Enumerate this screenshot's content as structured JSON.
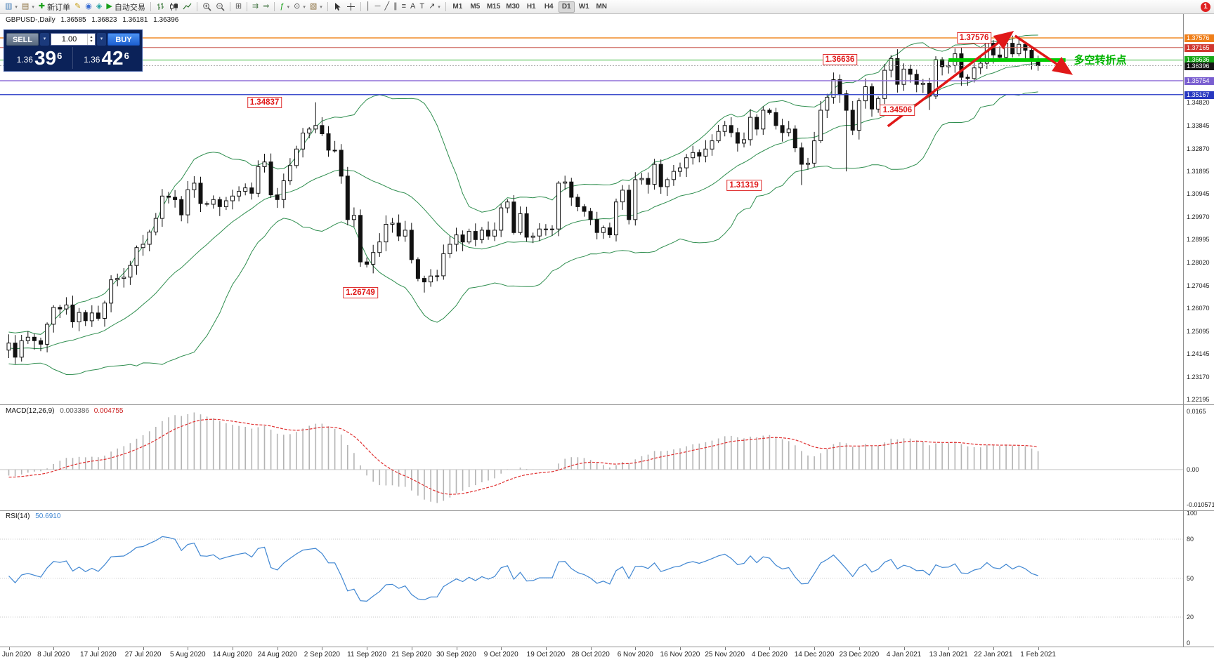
{
  "toolbar": {
    "groups": [
      {
        "items": [
          {
            "name": "new-chart-icon",
            "glyph": "▥",
            "color": "#3c78b4",
            "caret": true
          },
          {
            "name": "profiles-icon",
            "glyph": "▤",
            "color": "#8a6d3b",
            "caret": true
          },
          {
            "name": "new-order-button",
            "glyph": "✚",
            "color": "#18a018",
            "label": "新订单"
          },
          {
            "name": "metaeditor-icon",
            "glyph": "✎",
            "color": "#c8a018"
          },
          {
            "name": "experts-icon",
            "glyph": "◉",
            "color": "#3b6fd4"
          },
          {
            "name": "mql5-community-icon",
            "glyph": "◈",
            "color": "#20a0a0"
          },
          {
            "name": "autotrading-button",
            "glyph": "▶",
            "color": "#18a018",
            "label": "自动交易"
          }
        ]
      },
      {
        "items": [
          {
            "name": "bar-chart-icon",
            "svg": "bars"
          },
          {
            "name": "candlestick-chart-icon",
            "svg": "candles"
          },
          {
            "name": "line-chart-icon",
            "svg": "linec"
          }
        ]
      },
      {
        "items": [
          {
            "name": "zoom-in-icon",
            "svg": "zoomin"
          },
          {
            "name": "zoom-out-icon",
            "svg": "zoomout"
          }
        ]
      },
      {
        "items": [
          {
            "name": "tile-windows-icon",
            "glyph": "⊞",
            "color": "#555555"
          }
        ]
      },
      {
        "items": [
          {
            "name": "auto-scroll-icon",
            "glyph": "⇉",
            "color": "#4a7a4a"
          },
          {
            "name": "chart-shift-icon",
            "glyph": "⇒",
            "color": "#4a7a4a"
          }
        ]
      },
      {
        "items": [
          {
            "name": "indicators-icon",
            "glyph": "ƒ",
            "color": "#18a018",
            "caret": true
          },
          {
            "name": "periods-icon",
            "glyph": "⊙",
            "color": "#555555",
            "caret": true
          },
          {
            "name": "templates-icon",
            "glyph": "▧",
            "color": "#8a6d3b",
            "caret": true
          }
        ]
      },
      {
        "items": [
          {
            "name": "cursor-icon",
            "svg": "cursor"
          },
          {
            "name": "crosshair-icon",
            "svg": "cross"
          }
        ]
      },
      {
        "items": [
          {
            "name": "vertical-line-icon",
            "glyph": "│",
            "color": "#444444"
          },
          {
            "name": "horizontal-line-icon",
            "glyph": "─",
            "color": "#444444"
          },
          {
            "name": "trendline-icon",
            "glyph": "╱",
            "color": "#444444"
          },
          {
            "name": "equidistant-channel-icon",
            "glyph": "∥",
            "color": "#444444"
          },
          {
            "name": "fibonacci-icon",
            "glyph": "≡",
            "color": "#444444"
          },
          {
            "name": "text-icon",
            "glyph": "A",
            "color": "#444444"
          },
          {
            "name": "text-label-icon",
            "glyph": "T",
            "color": "#444444"
          },
          {
            "name": "arrows-icon",
            "glyph": "↗",
            "color": "#444444",
            "caret": true
          }
        ]
      }
    ],
    "timeframes": [
      "M1",
      "M5",
      "M15",
      "M30",
      "H1",
      "H4",
      "D1",
      "W1",
      "MN"
    ],
    "active_timeframe": "D1",
    "notification_badge": "1"
  },
  "chart_header": {
    "symbol": "GBPUSD-,Daily",
    "open": "1.36585",
    "high": "1.36823",
    "low": "1.36181",
    "close": "1.36396"
  },
  "trade_panel": {
    "sell_label": "SELL",
    "buy_label": "BUY",
    "volume": "1.00",
    "sell_price": {
      "prefix": "1.36",
      "main": "39",
      "sup": "6"
    },
    "buy_price": {
      "prefix": "1.36",
      "main": "42",
      "sup": "6"
    }
  },
  "price_axis": {
    "tags": [
      {
        "label": "1.37576",
        "price": 1.37576,
        "bg": "#ef7f1a"
      },
      {
        "label": "1.37165",
        "price": 1.37165,
        "bg": "#d03830"
      },
      {
        "label": "1.36636",
        "price": 1.36636,
        "bg": "#17a817"
      },
      {
        "label": "1.36396",
        "price": 1.36396,
        "bg": "#151515"
      },
      {
        "label": "1.35754",
        "price": 1.35754,
        "bg": "#7a5fd0"
      },
      {
        "label": "1.35167",
        "price": 1.35167,
        "bg": "#2838c0"
      }
    ],
    "ticks": [
      "1.34820",
      "1.33845",
      "1.32870",
      "1.31895",
      "1.30945",
      "1.29970",
      "1.28995",
      "1.28020",
      "1.27045",
      "1.26070",
      "1.25095",
      "1.24145",
      "1.23170",
      "1.22195"
    ]
  },
  "hlines": [
    {
      "price": 1.37576,
      "color": "#f08c28",
      "w": 1.5
    },
    {
      "price": 1.37165,
      "color": "#c85a50",
      "w": 1
    },
    {
      "price": 1.36636,
      "color": "#2bb42b",
      "w": 1
    },
    {
      "price": 1.36396,
      "color": "#b0b0b0",
      "w": 1,
      "dash": "2,2"
    },
    {
      "price": 1.35754,
      "color": "#9070d8",
      "w": 1.5
    },
    {
      "price": 1.35167,
      "color": "#4050cc",
      "w": 1.5
    }
  ],
  "annotations": {
    "price_labels": [
      {
        "text": "1.34837",
        "price": 1.34837,
        "index": 40
      },
      {
        "text": "1.26749",
        "price": 1.26749,
        "index": 55
      },
      {
        "text": "1.31319",
        "price": 1.31319,
        "index": 115
      },
      {
        "text": "1.34506",
        "price": 1.34506,
        "index": 139
      },
      {
        "text": "1.36636",
        "price": 1.36636,
        "index": 130
      },
      {
        "text": "1.37576",
        "price": 1.37576,
        "index": 151
      }
    ],
    "trend_arrows": [
      {
        "from": {
          "index": 137.5,
          "price": 1.3382
        },
        "to": {
          "index": 156.6,
          "price": 1.3775
        }
      },
      {
        "from": {
          "index": 157.4,
          "price": 1.3767
        },
        "to": {
          "index": 165.8,
          "price": 1.3612
        }
      }
    ],
    "turn_line": {
      "price": 1.36636,
      "from_index": 147,
      "to_index": 165.3
    },
    "turn_label": {
      "text": "多空转折点",
      "index": 166.6,
      "price": 1.36636
    }
  },
  "macd_panel": {
    "title": "MACD(12,26,9)",
    "value_macd": "0.003386",
    "value_signal": "0.004755",
    "axis_max": "0.0165",
    "axis_zero": "0.00",
    "axis_min": "-0.010571"
  },
  "rsi_panel": {
    "title": "RSI(14)",
    "value": "50.6910",
    "axis_levels": [
      "100",
      "80",
      "50",
      "20",
      "0"
    ]
  },
  "date_axis": [
    "Jun 2020",
    "8 Jul 2020",
    "17 Jul 2020",
    "27 Jul 2020",
    "5 Aug 2020",
    "14 Aug 2020",
    "24 Aug 2020",
    "2 Sep 2020",
    "11 Sep 2020",
    "21 Sep 2020",
    "30 Sep 2020",
    "9 Oct 2020",
    "19 Oct 2020",
    "28 Oct 2020",
    "6 Nov 2020",
    "16 Nov 2020",
    "25 Nov 2020",
    "4 Dec 2020",
    "14 Dec 2020",
    "23 Dec 2020",
    "4 Jan 2021",
    "13 Jan 2021",
    "22 Jan 2021",
    "1 Feb 2021"
  ],
  "chart_data": {
    "type": "candlestick",
    "symbol": "GBPUSD",
    "timeframe": "Daily",
    "indicators": [
      "Bollinger Bands (20,2)",
      "MACD(12,26,9)",
      "RSI(14)"
    ],
    "warmup": [
      1.2476,
      1.242,
      1.234,
      1.2335,
      1.2425,
      1.2545,
      1.257,
      1.262,
      1.2735,
      1.28,
      1.2813,
      1.266,
      1.259,
      1.254,
      1.2465,
      1.251,
      1.2435,
      1.238,
      1.242,
      1.2465,
      1.252,
      1.2475,
      1.242,
      1.2462,
      1.2518,
      1.2475,
      1.2425,
      1.2398,
      1.244,
      1.248,
      1.246,
      1.2415,
      1.239,
      1.243,
      1.2455,
      1.2405,
      1.238,
      1.242,
      1.245,
      1.243
    ],
    "closes": [
      1.246,
      1.24,
      1.247,
      1.2485,
      1.247,
      1.2455,
      1.254,
      1.2612,
      1.2605,
      1.2622,
      1.255,
      1.259,
      1.2555,
      1.2588,
      1.2565,
      1.263,
      1.2729,
      1.2735,
      1.274,
      1.279,
      1.2866,
      1.288,
      1.2932,
      1.299,
      1.3085,
      1.308,
      1.307,
      1.3005,
      1.3112,
      1.314,
      1.3053,
      1.305,
      1.307,
      1.304,
      1.3065,
      1.3085,
      1.3105,
      1.312,
      1.3097,
      1.321,
      1.323,
      1.309,
      1.307,
      1.315,
      1.3215,
      1.3285,
      1.3353,
      1.337,
      1.3385,
      1.335,
      1.328,
      1.328,
      1.317,
      1.2985,
      1.3003,
      1.2805,
      1.2795,
      1.2845,
      1.289,
      1.2965,
      1.297,
      1.2915,
      1.294,
      1.2815,
      1.2735,
      1.272,
      1.2745,
      1.2746,
      1.284,
      1.288,
      1.292,
      1.289,
      1.2935,
      1.29,
      1.294,
      1.2915,
      1.294,
      1.3035,
      1.306,
      1.293,
      1.301,
      1.291,
      1.2915,
      1.2945,
      1.2945,
      1.2945,
      1.314,
      1.3145,
      1.308,
      1.304,
      1.302,
      1.2985,
      1.293,
      1.295,
      1.292,
      1.306,
      1.311,
      1.2985,
      1.3155,
      1.316,
      1.3135,
      1.322,
      1.3125,
      1.3155,
      1.319,
      1.3205,
      1.3248,
      1.327,
      1.3255,
      1.3285,
      1.332,
      1.336,
      1.3385,
      1.3355,
      1.331,
      1.3325,
      1.342,
      1.337,
      1.345,
      1.344,
      1.3385,
      1.3355,
      1.337,
      1.329,
      1.322,
      1.3225,
      1.332,
      1.345,
      1.3505,
      1.358,
      1.352,
      1.345,
      1.3365,
      1.349,
      1.355,
      1.3455,
      1.35,
      1.362,
      1.367,
      1.356,
      1.3625,
      1.3603,
      1.356,
      1.3565,
      1.351,
      1.3665,
      1.3635,
      1.364,
      1.369,
      1.359,
      1.3585,
      1.363,
      1.365,
      1.3735,
      1.3685,
      1.3675,
      1.3735,
      1.369,
      1.373,
      1.3705,
      1.366,
      1.364
    ],
    "wick_highs": {
      "48": 1.34837,
      "153": 1.3748,
      "156": 1.37576,
      "161": 1.36823
    },
    "wick_lows": {
      "65": 1.26749,
      "124": 1.31319,
      "131": 1.319,
      "144": 1.34506,
      "161": 1.36181
    }
  }
}
